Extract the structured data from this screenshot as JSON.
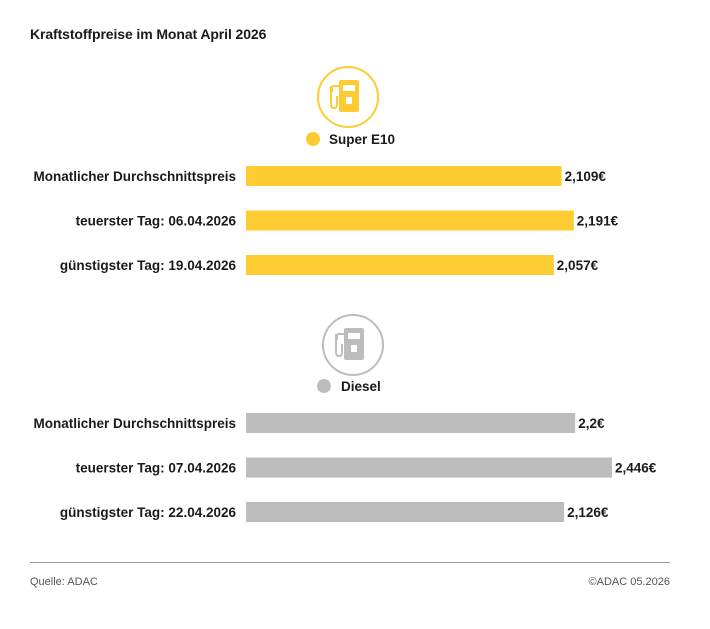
{
  "title": "Kraftstoffpreise im Monat April 2026",
  "source": "Quelle: ADAC",
  "copyright": "©ADAC 05.2026",
  "colors": {
    "super": "#fdcb32",
    "diesel": "#bdbdbd",
    "text": "#1a1a1a"
  },
  "icons": {
    "super": "fuel-pump-icon",
    "diesel": "fuel-pump-icon"
  },
  "chart_data": [
    {
      "type": "bar",
      "orientation": "horizontal",
      "legend": "Super E10",
      "color": "#fdcb32",
      "categories": [
        "Monatlicher Durchschnittspreis",
        "teuerster Tag: 06.04.2026",
        "günstigster Tag: 19.04.2026"
      ],
      "values": [
        2.109,
        2.191,
        2.057
      ],
      "value_labels": [
        "2,109€",
        "2,191€",
        "2,057€"
      ]
    },
    {
      "type": "bar",
      "orientation": "horizontal",
      "legend": "Diesel",
      "color": "#bdbdbd",
      "categories": [
        "Monatlicher Durchschnittspreis",
        "teuerster Tag: 07.04.2026",
        "günstigster Tag: 22.04.2026"
      ],
      "values": [
        2.2,
        2.446,
        2.126
      ],
      "value_labels": [
        "2,2€",
        "2,446€",
        "2,126€"
      ]
    }
  ]
}
